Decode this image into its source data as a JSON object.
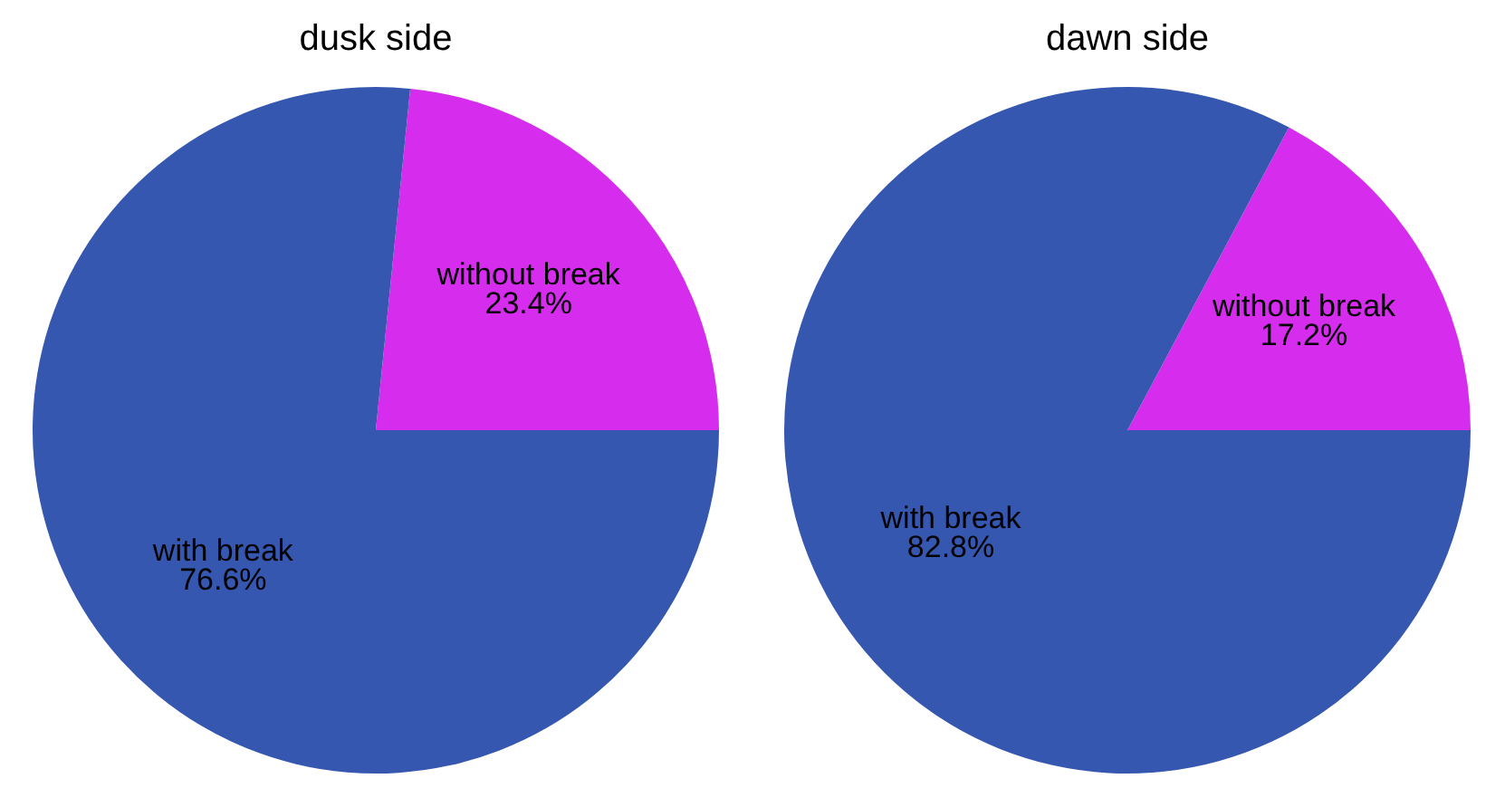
{
  "chart_data": [
    {
      "type": "pie",
      "title": "dusk side",
      "categories": [
        "without break",
        "with break"
      ],
      "values": [
        23.4,
        76.6
      ],
      "colors": [
        "#d62ced",
        "#3557b0"
      ],
      "value_labels": [
        "23.4%",
        "76.6%"
      ],
      "legend": false
    },
    {
      "type": "pie",
      "title": "dawn side",
      "categories": [
        "without break",
        "with break"
      ],
      "values": [
        17.2,
        82.8
      ],
      "colors": [
        "#d62ced",
        "#3557b0"
      ],
      "value_labels": [
        "17.2%",
        "82.8%"
      ],
      "legend": false
    }
  ]
}
